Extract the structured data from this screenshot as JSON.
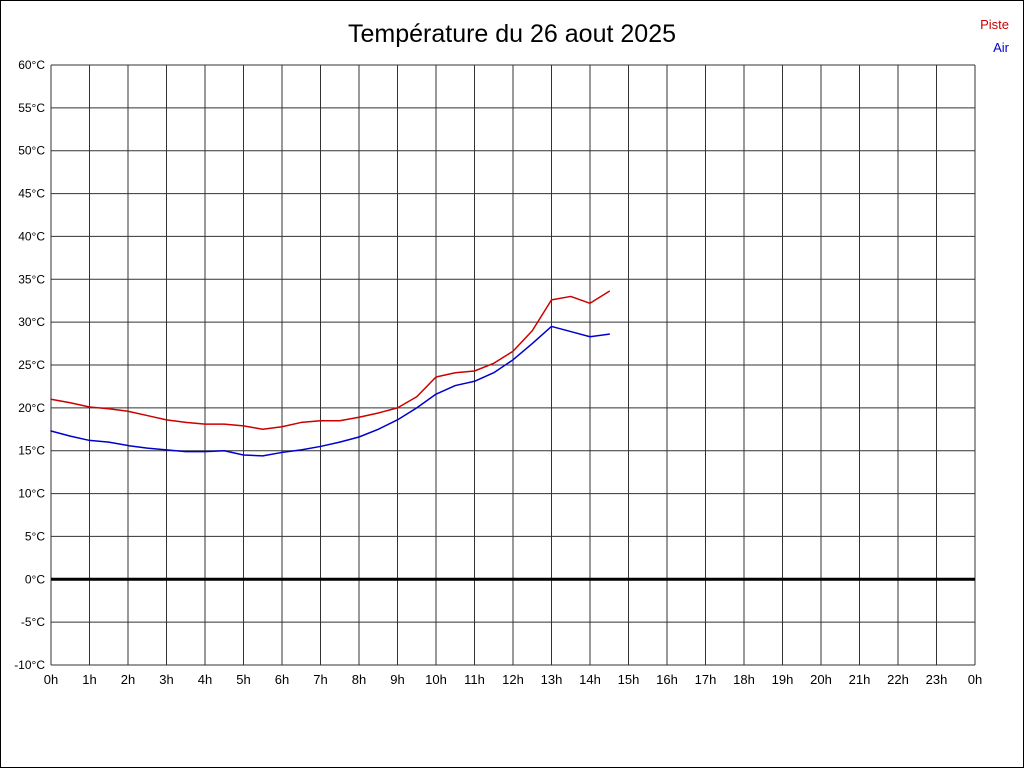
{
  "chart_data": {
    "type": "line",
    "title": "Température du 26 aout 2025",
    "xlabel": "",
    "ylabel": "",
    "xlim": [
      0,
      24
    ],
    "ylim": [
      -10,
      60
    ],
    "grid": true,
    "zero_line": true,
    "legend_position": "top-right",
    "x_ticks": [
      0,
      1,
      2,
      3,
      4,
      5,
      6,
      7,
      8,
      9,
      10,
      11,
      12,
      13,
      14,
      15,
      16,
      17,
      18,
      19,
      20,
      21,
      22,
      23,
      24
    ],
    "x_tick_labels": [
      "0h",
      "1h",
      "2h",
      "3h",
      "4h",
      "5h",
      "6h",
      "7h",
      "8h",
      "9h",
      "10h",
      "11h",
      "12h",
      "13h",
      "14h",
      "15h",
      "16h",
      "17h",
      "18h",
      "19h",
      "20h",
      "21h",
      "22h",
      "23h",
      "0h"
    ],
    "y_ticks": [
      60,
      55,
      50,
      45,
      40,
      35,
      30,
      25,
      20,
      15,
      10,
      5,
      0,
      -5,
      -10
    ],
    "y_tick_labels": [
      "60°C",
      "55°C",
      "50°C",
      "45°C",
      "40°C",
      "35°C",
      "30°C",
      "25°C",
      "20°C",
      "15°C",
      "10°C",
      "5°C",
      "0°C",
      "-5°C",
      "-10°C"
    ],
    "x": [
      0,
      0.5,
      1,
      1.5,
      2,
      2.5,
      3,
      3.5,
      4,
      4.5,
      5,
      5.5,
      6,
      6.5,
      7,
      7.5,
      8,
      8.5,
      9,
      9.5,
      10,
      10.5,
      11,
      11.5,
      12,
      12.5,
      13,
      13.5,
      14,
      14.5
    ],
    "series": [
      {
        "name": "Piste",
        "color": "#cc0000",
        "values": [
          21.0,
          20.6,
          20.1,
          19.9,
          19.6,
          19.1,
          18.6,
          18.3,
          18.1,
          18.1,
          17.9,
          17.5,
          17.8,
          18.3,
          18.5,
          18.5,
          18.9,
          19.4,
          20.0,
          21.3,
          23.6,
          24.1,
          24.3,
          25.2,
          26.6,
          29.0,
          32.6,
          33.0,
          32.2,
          33.6
        ]
      },
      {
        "name": "Air",
        "color": "#0000cc",
        "values": [
          17.3,
          16.7,
          16.2,
          16.0,
          15.6,
          15.3,
          15.1,
          14.9,
          14.9,
          15.0,
          14.5,
          14.4,
          14.8,
          15.1,
          15.5,
          16.0,
          16.6,
          17.5,
          18.6,
          20.0,
          21.6,
          22.6,
          23.1,
          24.1,
          25.6,
          27.5,
          29.5,
          28.9,
          28.3,
          28.6
        ]
      }
    ],
    "colors": {
      "grid": "#333333",
      "zero_line": "#000000",
      "text": "#000000"
    }
  }
}
